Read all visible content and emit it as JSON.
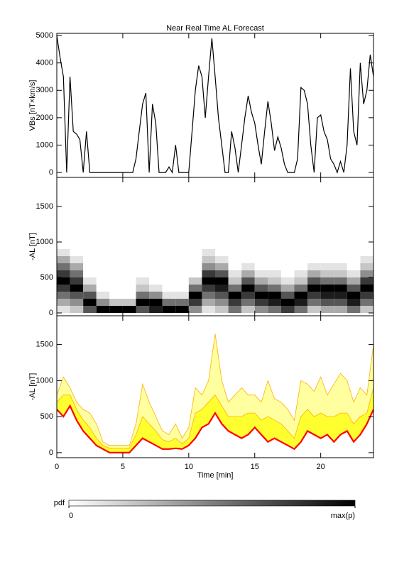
{
  "chart_data": [
    {
      "type": "line",
      "title": "Near Real Time AL Forecast",
      "ylabel": "VBs [nT×km/s]",
      "color": "#000000",
      "xlim": [
        0,
        24
      ],
      "xticks": [
        0,
        5,
        10,
        15,
        20
      ],
      "xtick_labels": false,
      "ylim": [
        -180,
        5080
      ],
      "yticks": [
        0,
        1000,
        2000,
        3000,
        4000,
        5000
      ],
      "x": [
        0,
        0.25,
        0.5,
        0.75,
        1,
        1.25,
        1.5,
        1.75,
        2,
        2.25,
        2.5,
        2.75,
        3,
        3.25,
        3.5,
        3.75,
        4,
        4.25,
        4.5,
        4.75,
        5,
        5.25,
        5.5,
        5.75,
        6,
        6.25,
        6.5,
        6.75,
        7,
        7.25,
        7.5,
        7.75,
        8,
        8.25,
        8.5,
        8.75,
        9,
        9.25,
        9.5,
        9.75,
        10,
        10.25,
        10.5,
        10.75,
        11,
        11.25,
        11.5,
        11.75,
        12,
        12.25,
        12.5,
        12.75,
        13,
        13.25,
        13.5,
        13.75,
        14,
        14.25,
        14.5,
        14.75,
        15,
        15.25,
        15.5,
        15.75,
        16,
        16.25,
        16.5,
        16.75,
        17,
        17.25,
        17.5,
        17.75,
        18,
        18.25,
        18.5,
        18.75,
        19,
        19.25,
        19.5,
        19.75,
        20,
        20.25,
        20.5,
        20.75,
        21,
        21.25,
        21.5,
        21.75,
        22,
        22.25,
        22.5,
        22.75,
        23,
        23.25,
        23.5,
        23.75,
        24
      ],
      "values": [
        5000,
        4200,
        3500,
        0,
        3500,
        1500,
        1400,
        1200,
        0,
        1500,
        0,
        0,
        0,
        0,
        0,
        0,
        0,
        0,
        0,
        0,
        0,
        0,
        0,
        0,
        500,
        1500,
        2500,
        2900,
        0,
        2500,
        1800,
        0,
        0,
        0,
        200,
        0,
        1000,
        0,
        0,
        0,
        0,
        1500,
        3000,
        3900,
        3500,
        2000,
        3500,
        4900,
        3500,
        2000,
        1000,
        0,
        0,
        1500,
        900,
        0,
        1000,
        2000,
        2800,
        2200,
        1800,
        1000,
        300,
        1500,
        2600,
        1800,
        800,
        1300,
        900,
        300,
        0,
        0,
        0,
        500,
        3100,
        3000,
        2500,
        1000,
        0,
        2000,
        2100,
        1500,
        1200,
        500,
        300,
        0,
        400,
        0,
        1000,
        3800,
        1500,
        1000,
        4000,
        2500,
        3000,
        4300,
        3500
      ]
    },
    {
      "type": "heatmap",
      "ylabel": "-AL [nT]",
      "xlim": [
        0,
        24
      ],
      "xticks": [
        0,
        5,
        10,
        15,
        20
      ],
      "xtick_labels": false,
      "ylim": [
        -40,
        1910
      ],
      "yticks": [
        0,
        500,
        1000,
        1500
      ],
      "x_bins": [
        0,
        1,
        2,
        3,
        4,
        5,
        6,
        7,
        8,
        9,
        10,
        11,
        12,
        13,
        14,
        15,
        16,
        17,
        18,
        19,
        20,
        21,
        22,
        23,
        24
      ],
      "y_bins": [
        0,
        100,
        200,
        300,
        400,
        500,
        600,
        700,
        800,
        900,
        1000
      ],
      "zlim": [
        0,
        9
      ],
      "z": [
        [
          1,
          3,
          5,
          7,
          9,
          7,
          5,
          3,
          1,
          0
        ],
        [
          2,
          4,
          6,
          9,
          7,
          5,
          3,
          1,
          0,
          0
        ],
        [
          6,
          9,
          6,
          3,
          1,
          0,
          0,
          0,
          0,
          0
        ],
        [
          9,
          4,
          1,
          0,
          0,
          0,
          0,
          0,
          0,
          0
        ],
        [
          9,
          2,
          0,
          0,
          0,
          0,
          0,
          0,
          0,
          0
        ],
        [
          9,
          2,
          0,
          0,
          0,
          0,
          0,
          0,
          0,
          0
        ],
        [
          6,
          9,
          5,
          2,
          1,
          0,
          0,
          0,
          0,
          0
        ],
        [
          8,
          9,
          4,
          1,
          0,
          0,
          0,
          0,
          0,
          0
        ],
        [
          9,
          5,
          1,
          0,
          0,
          0,
          0,
          0,
          0,
          0
        ],
        [
          9,
          5,
          1,
          0,
          0,
          0,
          0,
          0,
          0,
          0
        ],
        [
          4,
          7,
          9,
          5,
          2,
          0,
          0,
          0,
          0,
          0
        ],
        [
          1,
          3,
          5,
          7,
          9,
          7,
          4,
          2,
          1,
          0
        ],
        [
          2,
          4,
          6,
          8,
          9,
          6,
          3,
          1,
          0,
          0
        ],
        [
          5,
          7,
          9,
          5,
          2,
          1,
          0,
          0,
          0,
          0
        ],
        [
          2,
          5,
          7,
          9,
          6,
          3,
          1,
          0,
          0,
          0
        ],
        [
          4,
          7,
          9,
          6,
          3,
          1,
          0,
          0,
          0,
          0
        ],
        [
          5,
          8,
          9,
          5,
          2,
          1,
          0,
          0,
          0,
          0
        ],
        [
          7,
          9,
          6,
          3,
          1,
          0,
          0,
          0,
          0,
          0
        ],
        [
          5,
          8,
          9,
          5,
          2,
          1,
          0,
          0,
          0,
          0
        ],
        [
          2,
          5,
          7,
          9,
          6,
          3,
          1,
          0,
          0,
          0
        ],
        [
          3,
          6,
          8,
          9,
          5,
          2,
          1,
          0,
          0,
          0
        ],
        [
          3,
          6,
          8,
          9,
          5,
          2,
          1,
          0,
          0,
          0
        ],
        [
          5,
          8,
          9,
          6,
          3,
          1,
          0,
          0,
          0,
          0
        ],
        [
          2,
          5,
          7,
          9,
          7,
          4,
          2,
          1,
          0,
          0
        ]
      ],
      "colorbar": {
        "label": "pdf",
        "ticks": [
          0,
          {
            "value": 9,
            "label": "max(p)"
          }
        ]
      }
    },
    {
      "type": "band",
      "ylabel": "-AL [nT]",
      "xlabel": "Time [min]",
      "xlim": [
        0,
        24
      ],
      "xticks": [
        0,
        5,
        10,
        15,
        20
      ],
      "xtick_labels": true,
      "ylim": [
        -70,
        1900
      ],
      "yticks": [
        0,
        500,
        1000,
        1500
      ],
      "x": [
        0,
        0.5,
        1,
        1.5,
        2,
        2.5,
        3,
        3.5,
        4,
        4.5,
        5,
        5.5,
        6,
        6.5,
        7,
        7.5,
        8,
        8.5,
        9,
        9.5,
        10,
        10.5,
        11,
        11.5,
        12,
        12.5,
        13,
        13.5,
        14,
        14.5,
        15,
        15.5,
        16,
        16.5,
        17,
        17.5,
        18,
        18.5,
        19,
        19.5,
        20,
        20.5,
        21,
        21.5,
        22,
        22.5,
        23,
        23.5,
        24
      ],
      "upper": {
        "color": "#ffb000",
        "fill": "#ffffa0",
        "values": [
          800,
          1050,
          900,
          700,
          600,
          550,
          400,
          150,
          100,
          100,
          100,
          100,
          400,
          950,
          700,
          500,
          300,
          250,
          400,
          200,
          350,
          900,
          800,
          1000,
          1650,
          1000,
          700,
          800,
          900,
          800,
          800,
          700,
          1000,
          750,
          700,
          600,
          450,
          1000,
          950,
          850,
          1050,
          800,
          950,
          1100,
          1000,
          700,
          900,
          800,
          1500
        ]
      },
      "middle": {
        "color": "#ffb000",
        "fill": "#ffff30",
        "values": [
          700,
          800,
          800,
          600,
          450,
          350,
          200,
          100,
          60,
          60,
          60,
          60,
          250,
          500,
          400,
          300,
          180,
          150,
          200,
          120,
          200,
          550,
          600,
          700,
          800,
          650,
          500,
          500,
          500,
          550,
          550,
          450,
          500,
          450,
          400,
          300,
          200,
          500,
          600,
          500,
          550,
          500,
          500,
          550,
          550,
          400,
          500,
          550,
          900
        ]
      },
      "lower": {
        "color": "#ff0000",
        "values": [
          600,
          500,
          650,
          450,
          300,
          200,
          100,
          50,
          0,
          0,
          0,
          0,
          100,
          200,
          150,
          100,
          50,
          50,
          60,
          50,
          100,
          200,
          350,
          400,
          550,
          400,
          300,
          250,
          200,
          250,
          350,
          250,
          150,
          200,
          150,
          100,
          50,
          150,
          300,
          250,
          200,
          250,
          150,
          250,
          300,
          150,
          250,
          400,
          600
        ]
      }
    }
  ]
}
